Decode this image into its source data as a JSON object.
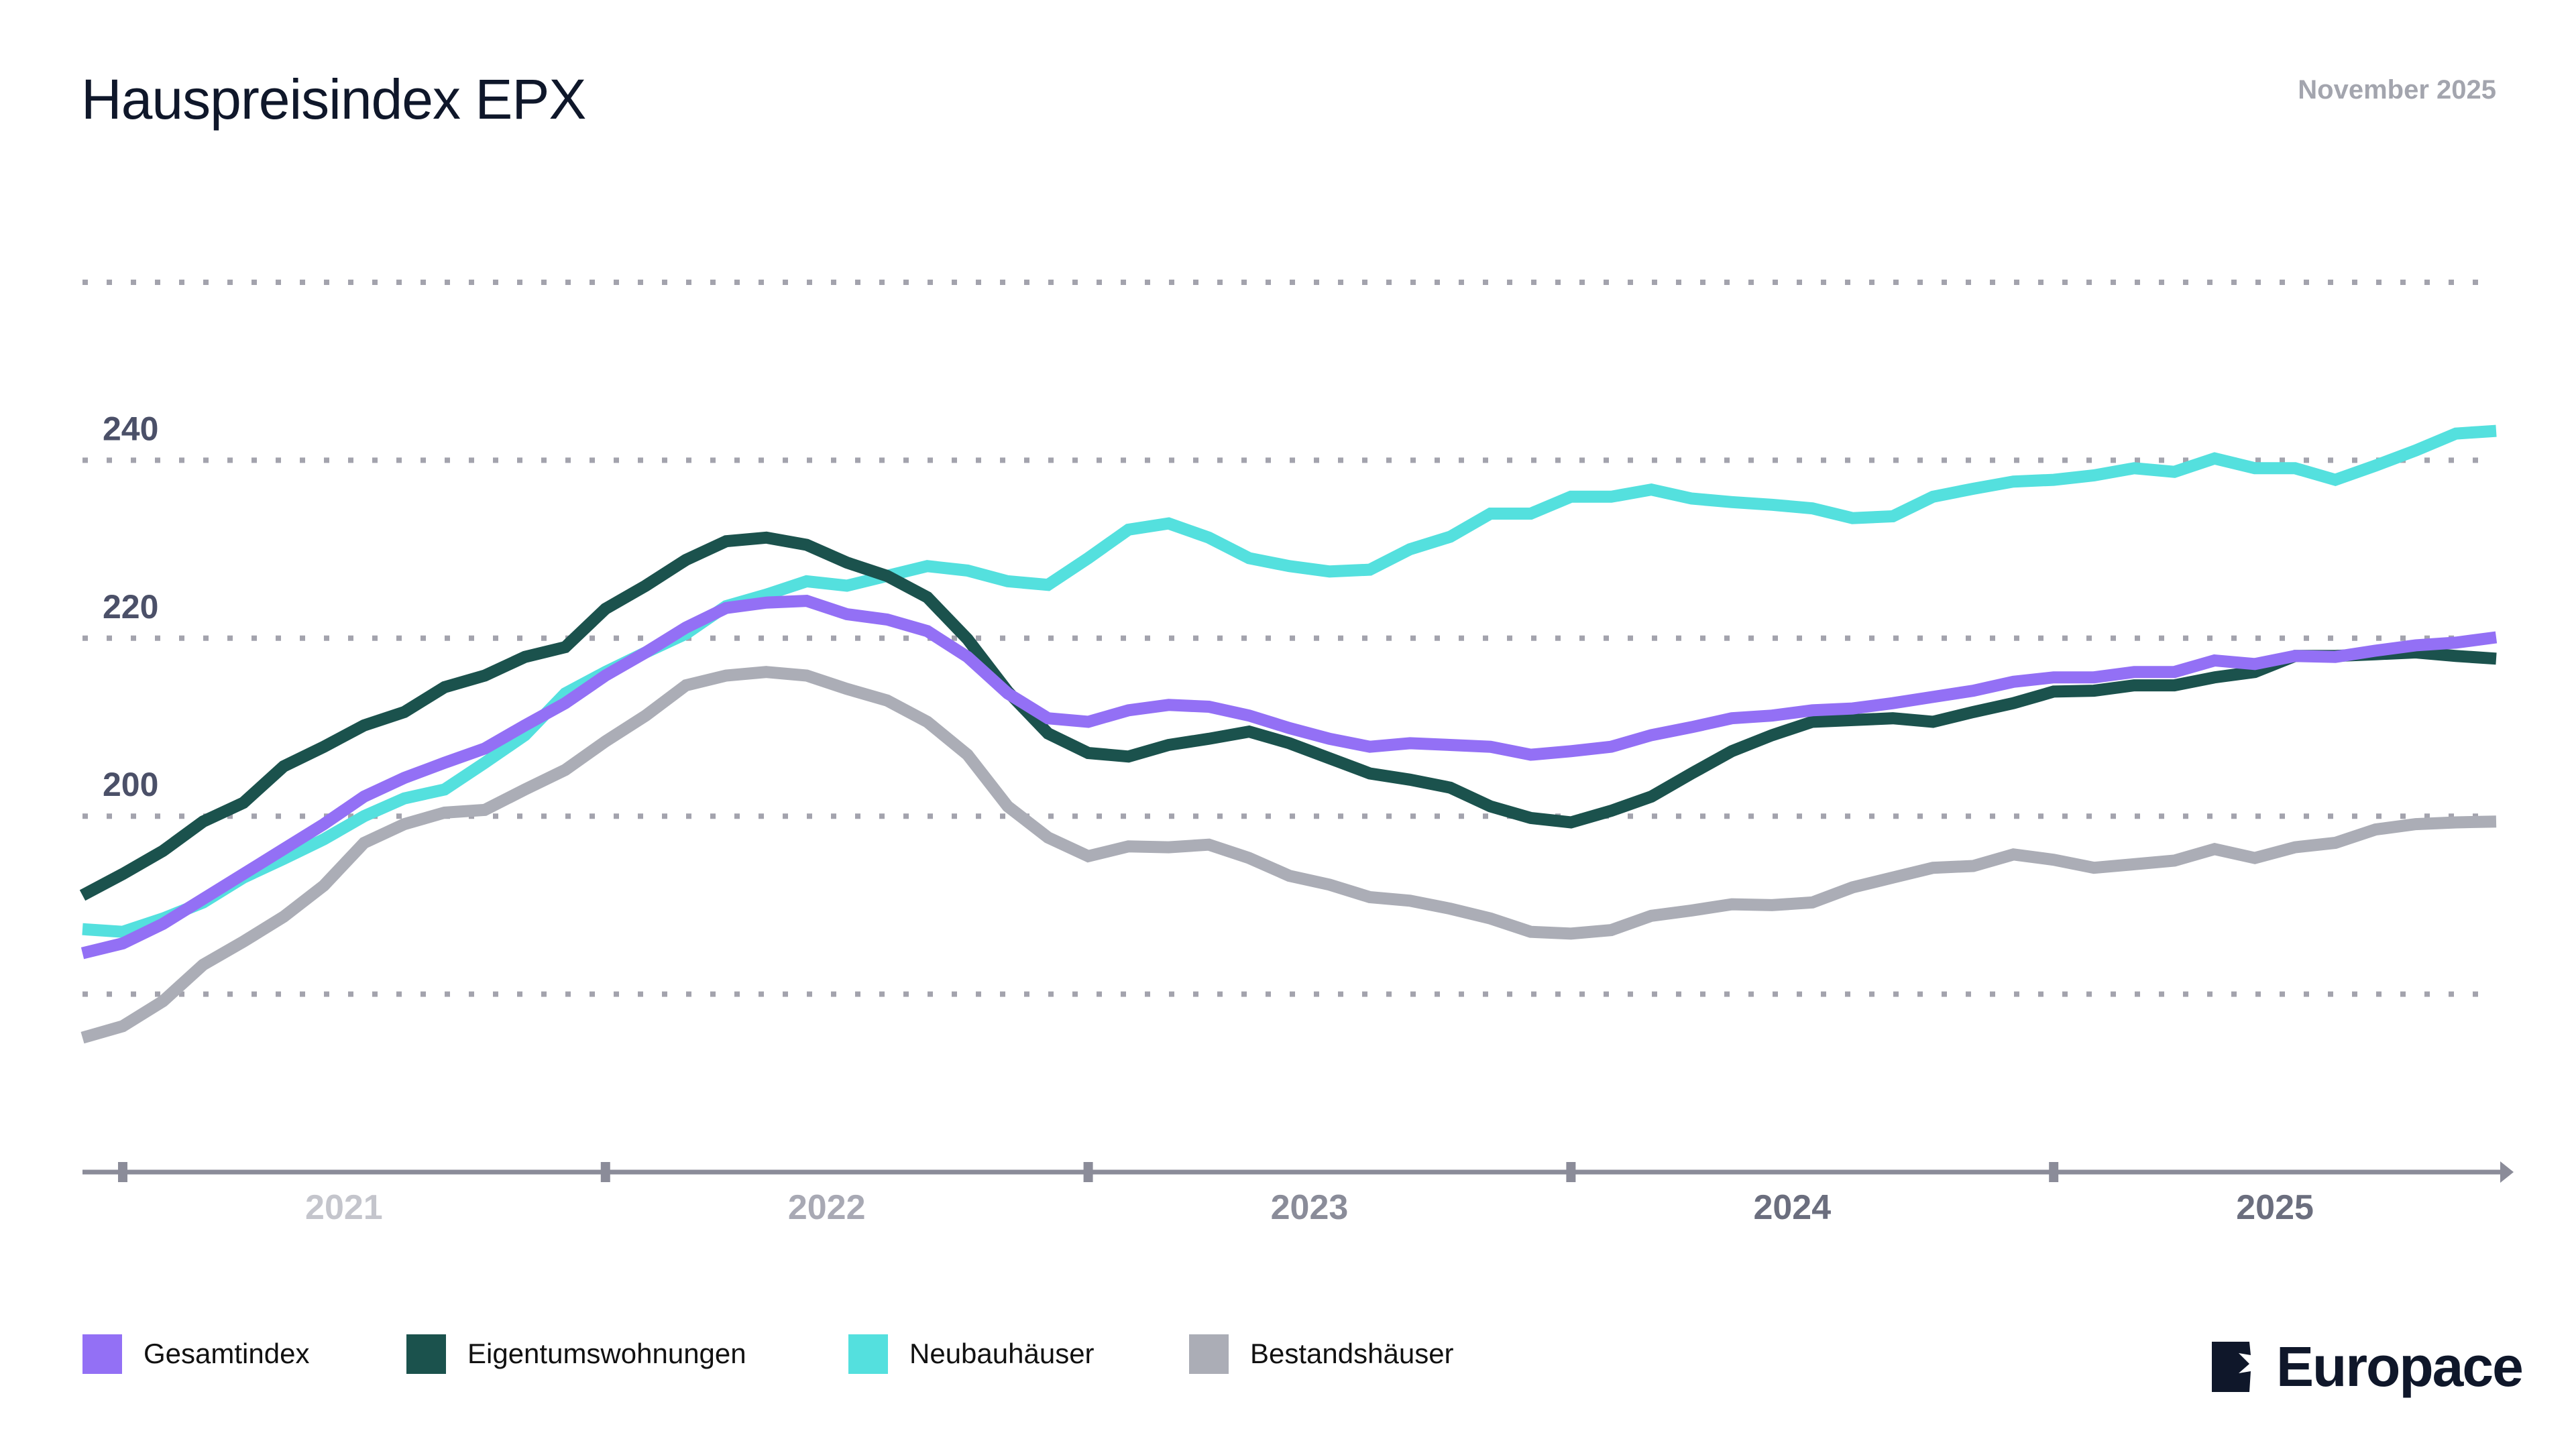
{
  "header": {
    "title": "Hauspreisindex EPX",
    "date": "November 2025"
  },
  "brand": {
    "name": "Europace",
    "color": "#0f172a"
  },
  "chart_data": {
    "type": "line",
    "title": "Hauspreisindex EPX",
    "xlabel": "",
    "ylabel": "",
    "ylim": [
      160,
      260
    ],
    "yticks": [
      180,
      200,
      220,
      240,
      260
    ],
    "ytick_labels": [
      "",
      "200",
      "220",
      "240",
      ""
    ],
    "xtick_years": [
      "2021",
      "2022",
      "2023",
      "2024",
      "2025"
    ],
    "xtick_year_colors": [
      "#c4c5cc",
      "#a8a9b4",
      "#8a8c99",
      "#6b6e7e",
      "#6b6e7e"
    ],
    "grid": true,
    "grid_style": "dotted",
    "legend_position": "bottom-left",
    "x": [
      "2020-12",
      "2021-01",
      "2021-02",
      "2021-03",
      "2021-04",
      "2021-05",
      "2021-06",
      "2021-07",
      "2021-08",
      "2021-09",
      "2021-10",
      "2021-11",
      "2021-12",
      "2022-01",
      "2022-02",
      "2022-03",
      "2022-04",
      "2022-05",
      "2022-06",
      "2022-07",
      "2022-08",
      "2022-09",
      "2022-10",
      "2022-11",
      "2022-12",
      "2023-01",
      "2023-02",
      "2023-03",
      "2023-04",
      "2023-05",
      "2023-06",
      "2023-07",
      "2023-08",
      "2023-09",
      "2023-10",
      "2023-11",
      "2023-12",
      "2024-01",
      "2024-02",
      "2024-03",
      "2024-04",
      "2024-05",
      "2024-06",
      "2024-07",
      "2024-08",
      "2024-09",
      "2024-10",
      "2024-11",
      "2024-12",
      "2025-01",
      "2025-02",
      "2025-03",
      "2025-04",
      "2025-05",
      "2025-06",
      "2025-07",
      "2025-08",
      "2025-09",
      "2025-10",
      "2025-11",
      "2025-12"
    ],
    "series": [
      {
        "name": "Bestandshäuser",
        "color": "#abadb6",
        "values": [
          175.1,
          176.4,
          179.2,
          183.3,
          185.9,
          188.7,
          192.2,
          197.0,
          199.1,
          200.4,
          200.7,
          203.0,
          205.2,
          208.4,
          211.3,
          214.7,
          215.8,
          216.2,
          215.8,
          214.3,
          213.0,
          210.6,
          206.9,
          201.1,
          197.6,
          195.5,
          196.6,
          196.5,
          196.8,
          195.3,
          193.3,
          192.3,
          190.9,
          190.5,
          189.6,
          188.5,
          187.0,
          186.8,
          187.2,
          188.8,
          189.4,
          190.1,
          190.0,
          190.3,
          192.0,
          193.1,
          194.2,
          194.4,
          195.7,
          195.1,
          194.2,
          194.6,
          195.0,
          196.3,
          195.3,
          196.5,
          197.0,
          198.5,
          199.1,
          199.3,
          199.4
        ]
      },
      {
        "name": "Neubauhäuser",
        "color": "#54e0de",
        "values": [
          187.3,
          187.0,
          188.5,
          190.3,
          193.1,
          195.2,
          197.4,
          200.0,
          202.0,
          203.0,
          206.0,
          209.1,
          213.8,
          216.2,
          218.4,
          220.5,
          223.6,
          224.9,
          226.4,
          225.9,
          227.0,
          228.1,
          227.6,
          226.4,
          226.0,
          229.0,
          232.2,
          232.9,
          231.3,
          229.0,
          228.1,
          227.5,
          227.7,
          230.0,
          231.4,
          234.0,
          234.0,
          235.9,
          235.9,
          236.7,
          235.7,
          235.3,
          235.0,
          234.6,
          233.5,
          233.7,
          235.9,
          236.8,
          237.6,
          237.8,
          238.3,
          239.1,
          238.7,
          240.2,
          239.1,
          239.1,
          237.8,
          239.4,
          241.1,
          243.0,
          243.3
        ]
      },
      {
        "name": "Eigentumswohnungen",
        "color": "#1b524d",
        "values": [
          191.1,
          193.5,
          196.1,
          199.4,
          201.5,
          205.6,
          207.8,
          210.2,
          211.7,
          214.5,
          215.8,
          217.9,
          219.0,
          223.3,
          225.9,
          228.8,
          230.9,
          231.3,
          230.5,
          228.5,
          227.0,
          224.6,
          219.9,
          214.0,
          209.3,
          207.1,
          206.7,
          208.0,
          208.7,
          209.5,
          208.2,
          206.5,
          204.8,
          204.1,
          203.2,
          201.1,
          199.8,
          199.3,
          200.6,
          202.2,
          204.8,
          207.3,
          209.1,
          210.6,
          210.8,
          211.0,
          210.6,
          211.7,
          212.7,
          214.0,
          214.1,
          214.7,
          214.7,
          215.6,
          216.2,
          218.0,
          218.0,
          218.2,
          218.4,
          218.0,
          217.7
        ]
      },
      {
        "name": "Gesamtindex",
        "color": "#9370f5",
        "values": [
          184.6,
          185.7,
          187.9,
          190.7,
          193.5,
          196.3,
          199.1,
          202.2,
          204.3,
          206.0,
          207.6,
          210.2,
          212.7,
          215.8,
          218.4,
          221.2,
          223.4,
          224.0,
          224.2,
          222.7,
          222.1,
          220.8,
          217.9,
          213.8,
          211.0,
          210.6,
          211.9,
          212.5,
          212.3,
          211.3,
          209.9,
          208.7,
          207.8,
          208.2,
          208.0,
          207.8,
          206.9,
          207.3,
          207.8,
          209.1,
          210.0,
          211.0,
          211.3,
          211.9,
          212.1,
          212.7,
          213.4,
          214.1,
          215.1,
          215.6,
          215.6,
          216.2,
          216.2,
          217.5,
          217.1,
          218.0,
          217.9,
          218.6,
          219.2,
          219.5,
          220.1
        ]
      }
    ],
    "legend": [
      {
        "label": "Gesamtindex",
        "color": "#9370f5"
      },
      {
        "label": "Eigentumswohnungen",
        "color": "#1b524d"
      },
      {
        "label": "Neubauhäuser",
        "color": "#54e0de"
      },
      {
        "label": "Bestandshäuser",
        "color": "#abadb6"
      }
    ]
  }
}
